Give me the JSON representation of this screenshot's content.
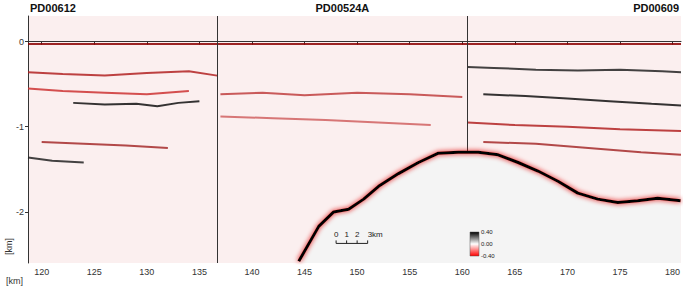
{
  "chart_data": {
    "type": "line",
    "x_label": "[km]",
    "y_label": "[km]",
    "xlim": [
      118.7,
      180.8
    ],
    "xticks": [
      120,
      125,
      130,
      135,
      140,
      145,
      150,
      155,
      160,
      165,
      170,
      175,
      180
    ],
    "ylim": [
      -2.6,
      0.3
    ],
    "yticks": [
      -2,
      -1,
      0
    ],
    "grid": false,
    "profiles": [
      {
        "name": "PD00612"
      },
      {
        "name": "PD00524A"
      },
      {
        "name": "PD00609"
      }
    ],
    "boundaries": [
      136.7,
      160.5
    ],
    "scale_bar": {
      "ticks": [
        0,
        1,
        2,
        {
          "value": 3,
          "label": "3km"
        }
      ]
    },
    "colorbar": {
      "range": [
        -0.4,
        0.4
      ],
      "ticks": [
        {
          "value": 0.4,
          "label": "0.40"
        },
        {
          "value": 0,
          "label": "0.00"
        },
        {
          "value": -0.4,
          "label": "-0.40"
        }
      ]
    },
    "series": [
      {
        "color": "#8b0000",
        "x": [
          118.7,
          180.8
        ],
        "values": [
          -0.03,
          -0.03
        ]
      },
      {
        "color": "#111111",
        "x": [
          123,
          126,
          129,
          131,
          133,
          135
        ],
        "values": [
          -0.72,
          -0.74,
          -0.73,
          -0.76,
          -0.72,
          -0.7
        ]
      },
      {
        "color": "#b22222",
        "x": [
          118.7,
          122,
          126,
          130,
          134,
          136.7
        ],
        "values": [
          -0.36,
          -0.38,
          -0.4,
          -0.37,
          -0.35,
          -0.4
        ]
      },
      {
        "color": "#cc3333",
        "x": [
          118.7,
          122,
          126,
          130,
          134
        ],
        "values": [
          -0.55,
          -0.58,
          -0.6,
          -0.62,
          -0.58
        ]
      },
      {
        "color": "#a52a2a",
        "x": [
          120,
          124,
          128,
          132
        ],
        "values": [
          -1.18,
          -1.2,
          -1.22,
          -1.25
        ]
      },
      {
        "color": "#222222",
        "x": [
          118.7,
          121,
          124
        ],
        "values": [
          -1.36,
          -1.4,
          -1.42
        ]
      },
      {
        "color": "#c04040",
        "x": [
          137,
          141,
          145,
          150,
          155,
          160
        ],
        "values": [
          -0.62,
          -0.6,
          -0.63,
          -0.6,
          -0.62,
          -0.65
        ]
      },
      {
        "color": "#d06060",
        "x": [
          137,
          142,
          147,
          152,
          157
        ],
        "values": [
          -0.88,
          -0.9,
          -0.92,
          -0.95,
          -0.98
        ]
      },
      {
        "color": "#222222",
        "x": [
          160.5,
          163,
          167,
          171,
          175,
          179,
          180.8
        ],
        "values": [
          -0.3,
          -0.31,
          -0.33,
          -0.34,
          -0.33,
          -0.35,
          -0.36
        ]
      },
      {
        "color": "#111111",
        "x": [
          162,
          166,
          170,
          174,
          178,
          180.8
        ],
        "values": [
          -0.62,
          -0.64,
          -0.67,
          -0.7,
          -0.73,
          -0.75
        ]
      },
      {
        "color": "#b22222",
        "x": [
          160.5,
          165,
          170,
          175,
          180.8
        ],
        "values": [
          -0.95,
          -0.98,
          -1.0,
          -1.03,
          -1.05
        ]
      },
      {
        "color": "#a52a2a",
        "x": [
          162,
          167,
          172,
          177,
          180.8
        ],
        "values": [
          -1.18,
          -1.2,
          -1.25,
          -1.3,
          -1.33
        ]
      },
      {
        "type": "area",
        "color": "#000000",
        "x": [
          144.45,
          146.35,
          147.77,
          149.19,
          150.62,
          152.04,
          153.93,
          155.83,
          157.73,
          159.62,
          161.52,
          163.41,
          165.31,
          167.2,
          169.1,
          170.99,
          172.89,
          174.79,
          176.68,
          178.58,
          180.76
        ],
        "values": [
          -2.58,
          -2.17,
          -2.0,
          -1.97,
          -1.85,
          -1.7,
          -1.55,
          -1.42,
          -1.31,
          -1.3,
          -1.3,
          -1.33,
          -1.42,
          -1.52,
          -1.64,
          -1.78,
          -1.85,
          -1.89,
          -1.87,
          -1.84,
          -1.87
        ]
      }
    ]
  }
}
